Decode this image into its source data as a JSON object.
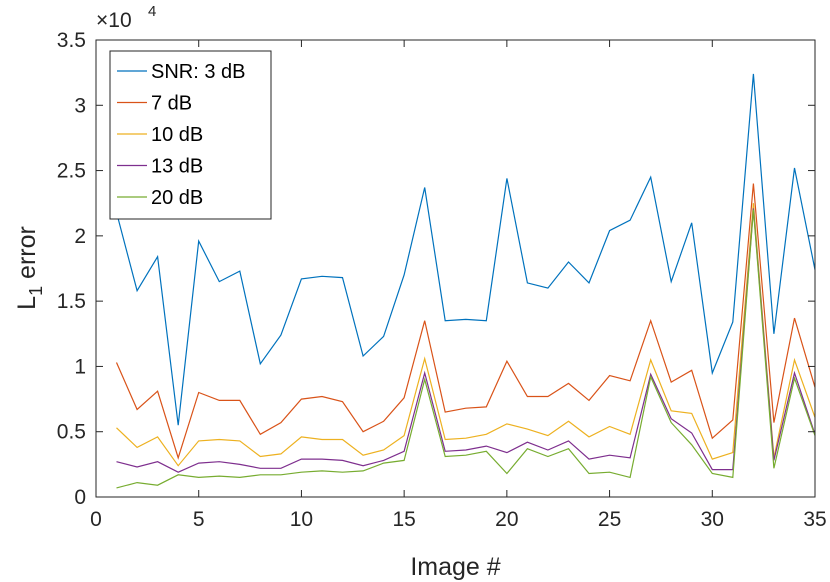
{
  "chart_data": {
    "type": "line",
    "xlabel": "Image #",
    "ylabel_main": "L",
    "ylabel_sub": "1",
    "ylabel_rest": " error",
    "y_multiplier_base": "×10",
    "y_multiplier_exp": "4",
    "xlim": [
      0,
      35
    ],
    "ylim": [
      0,
      35000
    ],
    "x_ticks": [
      0,
      5,
      10,
      15,
      20,
      25,
      30,
      35
    ],
    "y_ticks": [
      0,
      5000,
      10000,
      15000,
      20000,
      25000,
      30000,
      35000
    ],
    "y_tick_labels": [
      "0",
      "0.5",
      "1",
      "1.5",
      "2",
      "2.5",
      "3",
      "3.5"
    ],
    "legend_position": "top-left",
    "grid": false,
    "x": [
      1,
      2,
      3,
      4,
      5,
      6,
      7,
      8,
      9,
      10,
      11,
      12,
      13,
      14,
      15,
      16,
      17,
      18,
      19,
      20,
      21,
      22,
      23,
      24,
      25,
      26,
      27,
      28,
      29,
      30,
      31,
      32,
      33,
      34,
      35
    ],
    "series": [
      {
        "name": "SNR: 3 dB",
        "color": "#0072BD",
        "values": [
          21800,
          15800,
          18400,
          5500,
          19600,
          16500,
          17300,
          10200,
          12400,
          16700,
          16900,
          16800,
          10800,
          12300,
          17000,
          23700,
          13500,
          13600,
          13500,
          24400,
          16400,
          16000,
          18000,
          16400,
          20400,
          21200,
          24500,
          16500,
          21000,
          9500,
          13400,
          32400,
          12500,
          25200,
          17400
        ]
      },
      {
        "name": "7 dB",
        "color": "#D95319",
        "values": [
          10300,
          6700,
          8100,
          3000,
          8000,
          7400,
          7400,
          4800,
          5700,
          7500,
          7700,
          7300,
          5000,
          5800,
          7600,
          13500,
          6500,
          6800,
          6900,
          10400,
          7700,
          7700,
          8700,
          7400,
          9300,
          8900,
          13500,
          8800,
          9700,
          4500,
          5900,
          24000,
          5700,
          13700,
          8400
        ]
      },
      {
        "name": "10 dB",
        "color": "#EDB120",
        "values": [
          5300,
          3800,
          4600,
          2400,
          4300,
          4400,
          4300,
          3100,
          3300,
          4600,
          4400,
          4400,
          3200,
          3600,
          4700,
          10600,
          4400,
          4500,
          4800,
          5600,
          5200,
          4700,
          5800,
          4600,
          5400,
          4800,
          10500,
          6600,
          6400,
          2900,
          3400,
          22500,
          3000,
          10500,
          6100
        ]
      },
      {
        "name": "13 dB",
        "color": "#7E2F8E",
        "values": [
          2700,
          2300,
          2700,
          1900,
          2600,
          2700,
          2500,
          2200,
          2200,
          2900,
          2900,
          2800,
          2400,
          2800,
          3500,
          9500,
          3500,
          3600,
          3900,
          3400,
          4200,
          3600,
          4300,
          2900,
          3200,
          3000,
          9400,
          6000,
          4900,
          2100,
          2100,
          22100,
          2800,
          9500,
          4800
        ]
      },
      {
        "name": "20 dB",
        "color": "#77AC30",
        "values": [
          700,
          1100,
          900,
          1700,
          1500,
          1600,
          1500,
          1700,
          1700,
          1900,
          2000,
          1900,
          2000,
          2600,
          2800,
          9000,
          3100,
          3200,
          3500,
          1800,
          3700,
          3100,
          3700,
          1800,
          1900,
          1500,
          9200,
          5700,
          4000,
          1800,
          1500,
          22000,
          2200,
          9100,
          4700
        ]
      }
    ]
  }
}
